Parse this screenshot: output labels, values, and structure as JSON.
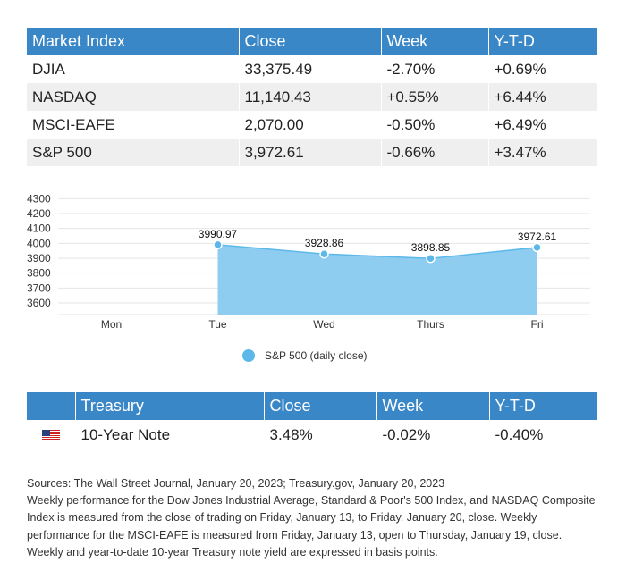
{
  "market_table": {
    "headers": [
      "Market Index",
      "Close",
      "Week",
      "Y-T-D"
    ],
    "rows": [
      [
        "DJIA",
        "33,375.49",
        "-2.70%",
        "+0.69%"
      ],
      [
        "NASDAQ",
        "11,140.43",
        "+0.55%",
        "+6.44%"
      ],
      [
        "MSCI-EAFE",
        "2,070.00",
        "-0.50%",
        "+6.49%"
      ],
      [
        "S&P 500",
        "3,972.61",
        "-0.66%",
        "+3.47%"
      ]
    ]
  },
  "chart_data": {
    "type": "area",
    "categories": [
      "Mon",
      "Tue",
      "Wed",
      "Thurs",
      "Fri"
    ],
    "series": [
      {
        "name": "S&P 500 (daily close)",
        "values": [
          null,
          3990.97,
          3928.86,
          3898.85,
          3972.61
        ],
        "labels": [
          "",
          "3990.97",
          "3928.86",
          "3898.85",
          "3972.61"
        ]
      }
    ],
    "y_ticks": [
      "4300",
      "4200",
      "4100",
      "4000",
      "3900",
      "3800",
      "3700",
      "3600"
    ],
    "ylim": [
      3600,
      4300
    ],
    "grid": true,
    "legend_position": "bottom-center",
    "colors": {
      "fill": "#8fcdf0",
      "line": "#5cb8e8",
      "marker": "#5cb8e8"
    }
  },
  "treasury_table": {
    "headers": [
      "Treasury",
      "Close",
      "Week",
      "Y-T-D"
    ],
    "flag_icon": "us-flag-icon",
    "rows": [
      [
        "10-Year Note",
        "3.48%",
        "-0.02%",
        "-0.40%"
      ]
    ]
  },
  "notes": {
    "sources": "Sources: The Wall Street Journal, January 20, 2023; Treasury.gov, January 20, 2023",
    "body": "Weekly performance for the Dow Jones Industrial Average, Standard & Poor's 500 Index, and NASDAQ Composite Index is measured from the close of trading on Friday, January 13, to Friday, January 20, close. Weekly performance for the MSCI-EAFE is measured from Friday, January 13, open to Thursday, January 19, close. Weekly and year-to-date 10-year Treasury note yield are expressed in basis points."
  }
}
